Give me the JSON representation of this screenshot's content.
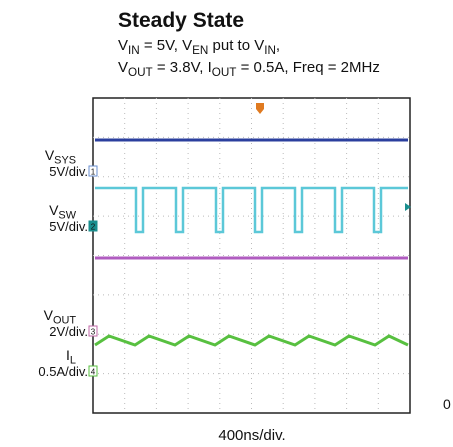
{
  "title": "Steady State",
  "conditions": [
    [
      {
        "text": "V"
      },
      {
        "sub": "IN"
      },
      {
        "text": " = 5V, V"
      },
      {
        "sub": "EN"
      },
      {
        "text": "  put to V"
      },
      {
        "sub": "IN"
      },
      {
        "text": ","
      }
    ],
    [
      {
        "text": "V"
      },
      {
        "sub": "OUT"
      },
      {
        "text": " = 3.8V, I"
      },
      {
        "sub": "OUT"
      },
      {
        "text": " = 0.5A, Freq = 2MHz"
      }
    ]
  ],
  "channels": [
    {
      "name": [
        {
          "text": "V"
        },
        {
          "sub": "SYS"
        }
      ],
      "scale": "5V/div.",
      "marker": "1"
    },
    {
      "name": [
        {
          "text": "V"
        },
        {
          "sub": "SW"
        }
      ],
      "scale": "5V/div.",
      "marker": "2"
    },
    {
      "name": [
        {
          "text": "V"
        },
        {
          "sub": "OUT"
        }
      ],
      "scale": "2V/div.",
      "marker": "3"
    },
    {
      "name": [
        {
          "text": "I"
        },
        {
          "sub": "L"
        }
      ],
      "scale": "0.5A/div.",
      "marker": "4"
    }
  ],
  "zero_label": "0",
  "time_scale": "400ns/div."
}
